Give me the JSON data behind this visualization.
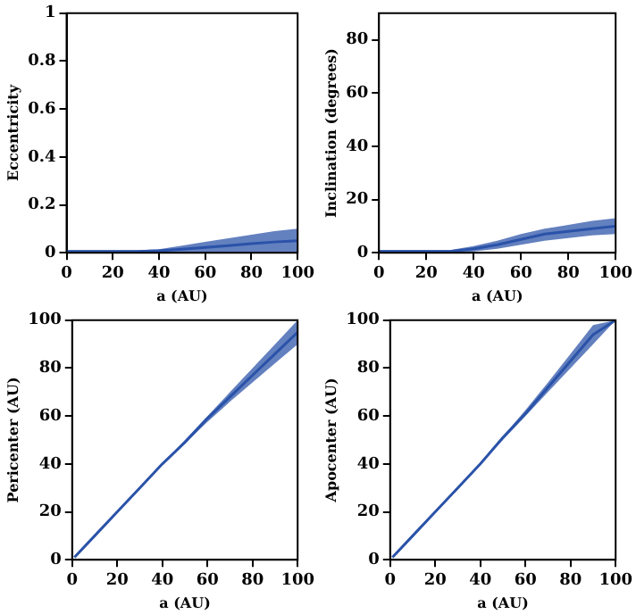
{
  "chart_data": [
    {
      "type": "line",
      "xlabel": "a (AU)",
      "ylabel": "Eccentricity",
      "x": [
        0,
        10,
        20,
        30,
        40,
        50,
        60,
        70,
        80,
        90,
        100
      ],
      "xlim": [
        0,
        100
      ],
      "xticks": [
        0,
        20,
        40,
        60,
        80,
        100
      ],
      "ylim": [
        0,
        1
      ],
      "yticks": [
        0,
        0.2,
        0.4,
        0.6,
        0.8,
        1
      ],
      "grid": false,
      "legend": false,
      "marker": "none",
      "series": [
        {
          "color": "#2a52a8",
          "values": [
            0.005,
            0.005,
            0.005,
            0.005,
            0.008,
            0.015,
            0.022,
            0.03,
            0.038,
            0.045,
            0.05
          ],
          "lower": [
            0,
            0,
            0,
            0,
            0,
            0,
            0,
            0,
            0,
            0,
            0
          ],
          "upper": [
            0.01,
            0.01,
            0.01,
            0.01,
            0.015,
            0.03,
            0.045,
            0.06,
            0.075,
            0.09,
            0.1
          ]
        }
      ]
    },
    {
      "type": "line",
      "xlabel": "a (AU)",
      "ylabel": "Inclination (degrees)",
      "x": [
        0,
        10,
        20,
        30,
        40,
        50,
        60,
        70,
        80,
        90,
        100
      ],
      "xlim": [
        0,
        100
      ],
      "xticks": [
        0,
        20,
        40,
        60,
        80,
        100
      ],
      "ylim": [
        0,
        90
      ],
      "yticks": [
        0,
        20,
        40,
        60,
        80
      ],
      "grid": false,
      "legend": false,
      "marker": "none",
      "series": [
        {
          "color": "#2a52a8",
          "values": [
            0.5,
            0.5,
            0.5,
            0.5,
            1.5,
            3,
            5,
            7,
            8,
            9,
            10
          ],
          "lower": [
            0,
            0,
            0,
            0,
            0.5,
            1.5,
            3,
            4.5,
            5.5,
            6.5,
            7
          ],
          "upper": [
            1,
            1,
            1,
            1,
            2.5,
            4.5,
            7,
            9,
            10.5,
            12,
            13
          ]
        }
      ]
    },
    {
      "type": "line",
      "xlabel": "a (AU)",
      "ylabel": "Pericenter (AU)",
      "x": [
        1,
        10,
        20,
        30,
        40,
        50,
        60,
        70,
        80,
        90,
        100
      ],
      "xlim": [
        0,
        100
      ],
      "xticks": [
        0,
        20,
        40,
        60,
        80,
        100
      ],
      "ylim": [
        0,
        100
      ],
      "yticks": [
        0,
        20,
        40,
        60,
        80,
        100
      ],
      "grid": false,
      "legend": false,
      "marker": "none",
      "series": [
        {
          "color": "#2a52a8",
          "values": [
            1,
            10,
            20,
            30,
            40,
            49,
            59,
            68,
            77,
            86,
            95
          ],
          "lower": [
            1,
            10,
            20,
            30,
            39.5,
            48.5,
            57.5,
            66,
            74,
            82,
            90
          ],
          "upper": [
            1,
            10,
            20,
            30,
            40,
            50,
            60,
            70,
            80,
            90,
            100
          ]
        }
      ]
    },
    {
      "type": "line",
      "xlabel": "a (AU)",
      "ylabel": "Apocenter (AU)",
      "x": [
        1,
        10,
        20,
        30,
        40,
        50,
        60,
        70,
        80,
        90,
        100
      ],
      "xlim": [
        0,
        100
      ],
      "xticks": [
        0,
        20,
        40,
        60,
        80,
        100
      ],
      "ylim": [
        0,
        100
      ],
      "yticks": [
        0,
        20,
        40,
        60,
        80,
        100
      ],
      "grid": false,
      "legend": false,
      "marker": "none",
      "series": [
        {
          "color": "#2a52a8",
          "values": [
            1,
            10,
            20,
            30,
            40,
            51,
            61,
            72,
            83,
            94,
            100
          ],
          "lower": [
            1,
            10,
            20,
            30,
            40,
            50,
            60,
            70,
            80,
            90,
            100
          ],
          "upper": [
            1,
            10,
            20,
            30,
            40.5,
            51.5,
            62.5,
            74,
            86,
            98,
            100
          ]
        }
      ]
    }
  ]
}
